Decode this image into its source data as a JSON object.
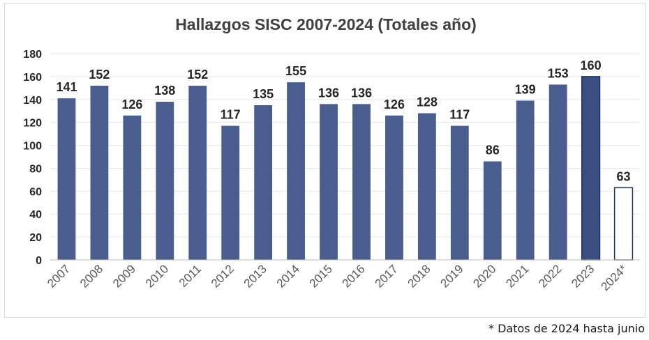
{
  "chart_data": {
    "type": "bar",
    "title": "Hallazgos SISC 2007-2024 (Totales año)",
    "xlabel": "",
    "ylabel": "",
    "ylim": [
      0,
      180
    ],
    "yticks": [
      0,
      20,
      40,
      60,
      80,
      100,
      120,
      140,
      160,
      180
    ],
    "grid": true,
    "legend": "none",
    "categories": [
      "2007",
      "2008",
      "2009",
      "2010",
      "2011",
      "2012",
      "2013",
      "2014",
      "2015",
      "2016",
      "2017",
      "2018",
      "2019",
      "2020",
      "2021",
      "2022",
      "2023",
      "2024*"
    ],
    "values": [
      141,
      152,
      126,
      138,
      152,
      117,
      135,
      155,
      136,
      136,
      126,
      128,
      117,
      86,
      139,
      153,
      160,
      63
    ],
    "bar_style": [
      "filled",
      "filled",
      "filled",
      "filled",
      "filled",
      "filled",
      "filled",
      "filled",
      "filled",
      "filled",
      "filled",
      "filled",
      "filled",
      "filled",
      "filled",
      "filled",
      "filled-outlined",
      "hollow"
    ],
    "colors": {
      "bar": "#4a5d8f",
      "bar_dark": "#3b4e80",
      "outline": "#1f2f5e",
      "grid": "#e6e6e6",
      "tick_text": "#595959",
      "label_text": "#262626",
      "title_text": "#404040"
    }
  },
  "footnote": "* Datos de 2024 hasta junio"
}
